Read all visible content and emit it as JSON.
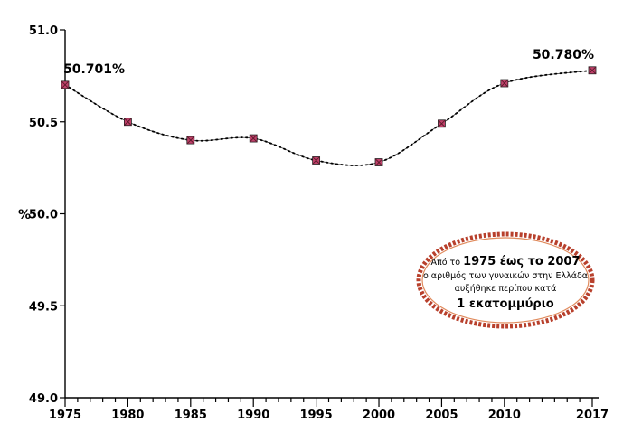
{
  "chart_data": {
    "type": "line",
    "ylabel": "%",
    "ylim": [
      49.0,
      51.0
    ],
    "y_ticks": [
      "51.0",
      "50.5",
      "50.0",
      "49.5",
      "49.0"
    ],
    "x_ticks": [
      "1975",
      "1980",
      "1985",
      "1990",
      "1995",
      "2000",
      "2005",
      "2010",
      "2017"
    ],
    "x_range": [
      1975,
      2017
    ],
    "grid": false,
    "series": [
      {
        "values": [
          {
            "x": 1975,
            "y": 50.701
          },
          {
            "x": 1980,
            "y": 50.5
          },
          {
            "x": 1985,
            "y": 50.4
          },
          {
            "x": 1990,
            "y": 50.41
          },
          {
            "x": 1995,
            "y": 50.29
          },
          {
            "x": 2000,
            "y": 50.28
          },
          {
            "x": 2005,
            "y": 50.49
          },
          {
            "x": 2010,
            "y": 50.71
          },
          {
            "x": 2017,
            "y": 50.78
          }
        ]
      }
    ],
    "data_labels": [
      {
        "x": 1975,
        "text": "50.701%"
      },
      {
        "x": 2017,
        "text": "50.780%"
      }
    ],
    "annotation": {
      "line1_prefix": "Από το ",
      "line1_bold": "1975 έως το 2007",
      "line2": "ο αριθμός των γυναικών στην Ελλάδα",
      "line3": "αυξήθηκε περίπου κατά",
      "line4": "1 εκατομμύριο"
    },
    "colors": {
      "marker": "#c0406a",
      "line": "#000000",
      "ellipse_border": "#b8402c"
    }
  }
}
